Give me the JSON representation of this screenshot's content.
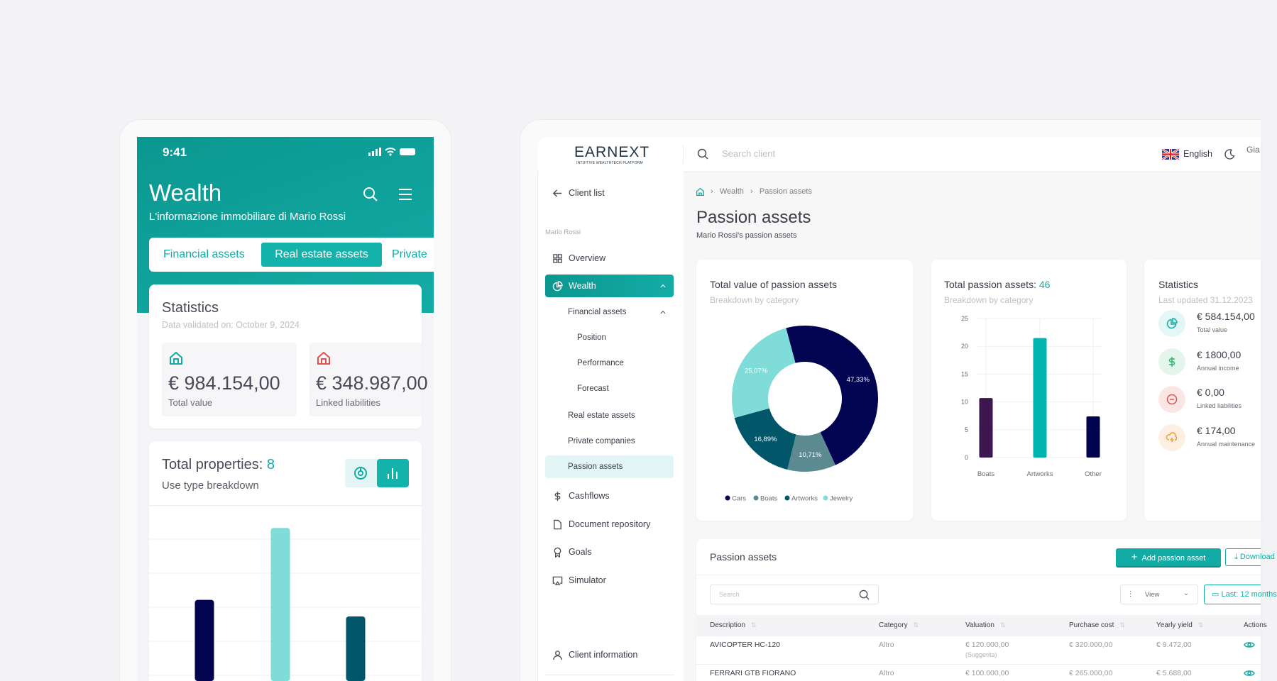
{
  "colors": {
    "teal": "#12aaa3",
    "navy": "#020452",
    "bg": "#f3f3f5"
  },
  "mobile": {
    "status_time": "9:41",
    "title": "Wealth",
    "subtitle": "L'informazione immobiliare di Mario Rossi",
    "tabs": [
      {
        "label": "Financial assets",
        "active": false
      },
      {
        "label": "Real estate assets",
        "active": true
      },
      {
        "label": "Private",
        "active": false
      }
    ],
    "stats": {
      "title": "Statistics",
      "validated": "Data validated on: October 9, 2024",
      "items": [
        {
          "value": "€ 984.154,00",
          "label": "Total value",
          "icon": "house-icon",
          "color": "#12aaa3"
        },
        {
          "value": "€ 348.987,00",
          "label": "Linked liabilities",
          "icon": "house-icon",
          "color": "#e0524f"
        }
      ]
    },
    "properties": {
      "title": "Total properties: ",
      "count": "8",
      "subtitle": "Use type breakdown",
      "view_toggle": [
        "donut-chart-icon",
        "bar-chart-icon"
      ],
      "active_view": "bar-chart-icon"
    }
  },
  "desktop": {
    "logo": {
      "name": "EARNEXT",
      "tagline": "INTUITIVE WEALTHTECH PLATFORM"
    },
    "search_placeholder": "Search client",
    "language": "English",
    "user_partial": "Gia",
    "sidebar": {
      "back": "Client list",
      "client": "Mario Rossi",
      "items": [
        {
          "label": "Overview",
          "icon": "grid-icon"
        },
        {
          "label": "Wealth",
          "icon": "pie-icon",
          "active": true
        },
        {
          "label": "Financial assets"
        },
        {
          "label": "Position"
        },
        {
          "label": "Performance"
        },
        {
          "label": "Forecast"
        },
        {
          "label": "Real estate assets"
        },
        {
          "label": "Private companies"
        },
        {
          "label": "Passion assets",
          "selected": true
        },
        {
          "label": "Cashflows",
          "icon": "dollar-icon"
        },
        {
          "label": "Document repository",
          "icon": "document-icon"
        },
        {
          "label": "Goals",
          "icon": "award-icon"
        },
        {
          "label": "Simulator",
          "icon": "screen-icon"
        },
        {
          "label": "Client information",
          "icon": "user-icon"
        }
      ]
    },
    "breadcrumb": [
      "Wealth",
      "Passion assets"
    ],
    "page_title": "Passion assets",
    "page_subtitle": "Mario Rossi's passion assets",
    "donut_card": {
      "title": "Total value of passion assets",
      "subtitle": "Breakdown by category"
    },
    "bar_card": {
      "title": "Total passion assets: ",
      "count": "46",
      "subtitle": "Breakdown by category"
    },
    "stats_card": {
      "title": "Statistics",
      "subtitle": "Last updated 31.12.2023",
      "items": [
        {
          "value": "€ 584.154,00",
          "label": "Total value",
          "icon": "pie-icon",
          "color": "#12aaa3",
          "bg": "#e3f7f6"
        },
        {
          "value": "€ 1800,00",
          "label": "Annual income",
          "icon": "dollar-icon",
          "color": "#2bb673",
          "bg": "#e4f6ec"
        },
        {
          "value": "€ 0,00",
          "label": "Linked liabilities",
          "icon": "minus-circle-icon",
          "color": "#e0524f",
          "bg": "#fbe6e6"
        },
        {
          "value": "€ 174,00",
          "label": "Annual maintenance",
          "icon": "cloud-lightning-icon",
          "color": "#f39a3c",
          "bg": "#fdf0e2"
        }
      ]
    },
    "table": {
      "title": "Passion assets",
      "add_button": "Add passion asset",
      "download_button": "Download",
      "search_placeholder": "Search",
      "view_label": "View",
      "period_label": "Last: 12 months",
      "columns": [
        "Description",
        "Category",
        "Valuation",
        "Purchase cost",
        "Yearly yield",
        "Actions"
      ],
      "rows": [
        {
          "description": "AVICOPTER HC-120",
          "category": "Altro",
          "valuation": "€ 120.000,00",
          "valuation_note": "(Suggerita)",
          "purchase_cost": "€ 320.000,00",
          "yearly_yield": "€ 9.472,00"
        },
        {
          "description": "FERRARI GTB FIORANO",
          "category": "Altro",
          "valuation": "€ 100.000,00",
          "valuation_note": "",
          "purchase_cost": "€ 265.000,00",
          "yearly_yield": "€ 5.688,00"
        }
      ]
    }
  },
  "chart_data": [
    {
      "type": "pie",
      "variant": "donut",
      "categories": [
        "Cars",
        "Boats",
        "Artworks",
        "Jewelry"
      ],
      "values": [
        47.33,
        10.71,
        16.89,
        25.07
      ],
      "labels": [
        "47,33%",
        "10,71%",
        "16,89%",
        "25,07%"
      ],
      "colors": [
        "#020452",
        "#5b8b91",
        "#02566a",
        "#7fdcd8"
      ],
      "legend": "bottom"
    },
    {
      "type": "bar",
      "categories": [
        "Boats",
        "Artworks",
        "Other"
      ],
      "values": [
        10.7,
        21.5,
        7.4
      ],
      "colors": [
        "#3d1650",
        "#00b5b0",
        "#02034f"
      ],
      "ylim": [
        0,
        25
      ],
      "yticks": [
        "0",
        "5",
        "10",
        "15",
        "20",
        "25"
      ],
      "grid": true
    },
    {
      "type": "bar",
      "values": [
        4.4,
        8.3,
        3.5
      ],
      "colors": [
        "#02044f",
        "#7fdcd8",
        "#02566a"
      ],
      "grid": true
    }
  ]
}
